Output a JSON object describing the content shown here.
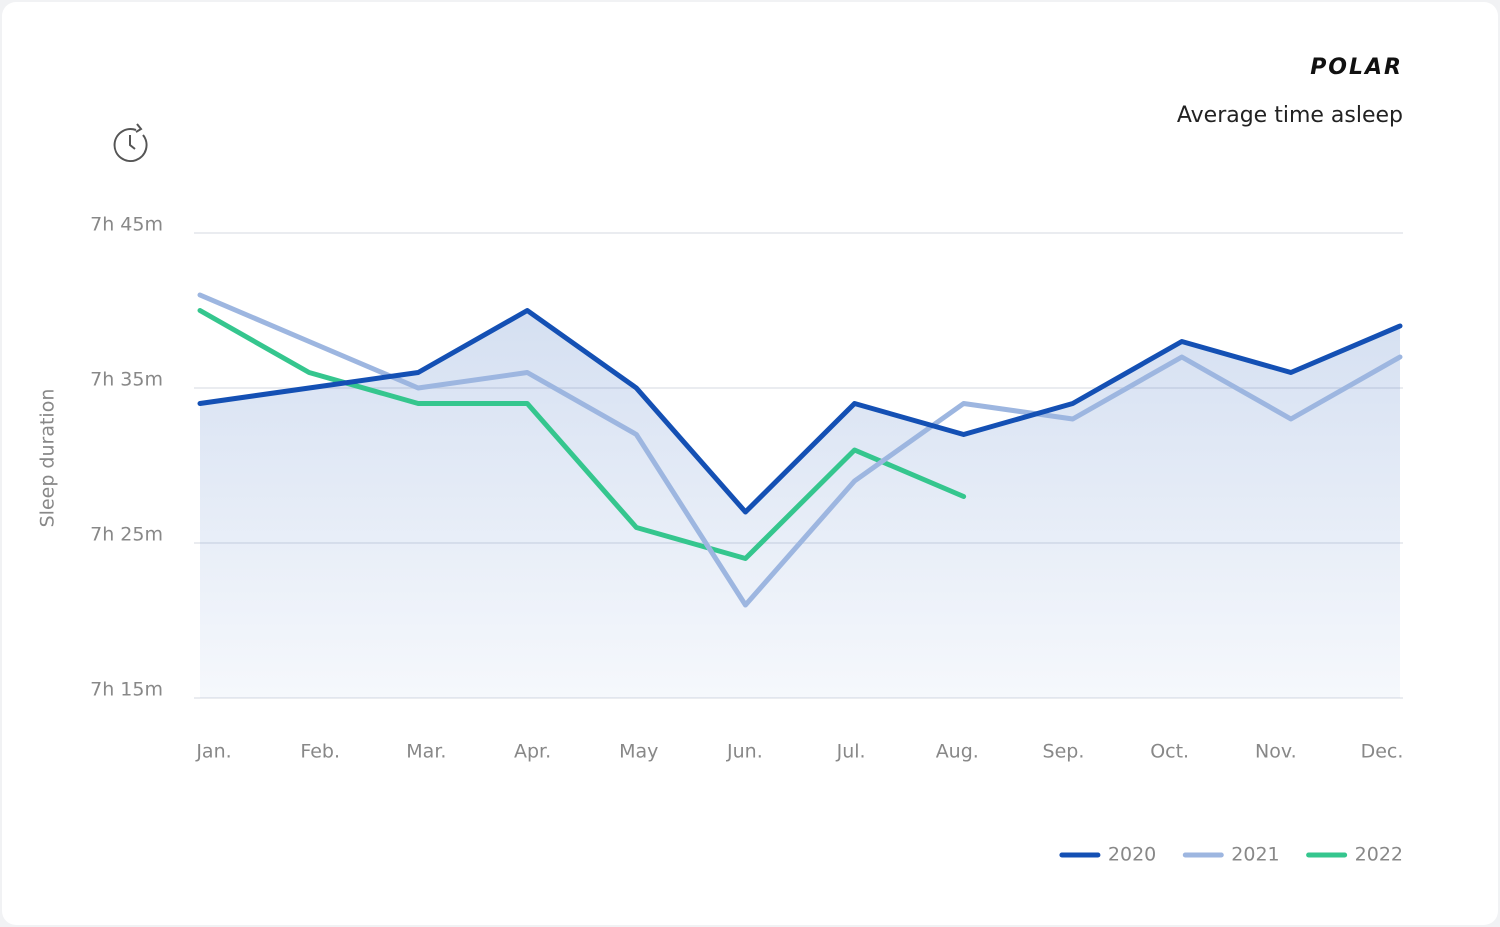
{
  "brand": "POLAR",
  "chart_data": {
    "type": "line",
    "title": "Average time asleep",
    "y_label": "Sleep duration",
    "categories": [
      "Jan.",
      "Feb.",
      "Mar.",
      "Apr.",
      "May",
      "Jun.",
      "Jul.",
      "Aug.",
      "Sep.",
      "Oct.",
      "Nov.",
      "Dec."
    ],
    "series": [
      {
        "name": "2020",
        "color": "#1450b4",
        "area": true,
        "values": [
          454,
          455,
          456,
          460,
          455,
          447,
          454,
          452,
          454,
          458,
          456,
          459
        ]
      },
      {
        "name": "2021",
        "color": "#9db6e0",
        "values": [
          461,
          458,
          455,
          456,
          452,
          441,
          449,
          454,
          453,
          457,
          453,
          457
        ]
      },
      {
        "name": "2022",
        "color": "#35c68e",
        "values": [
          460,
          456,
          454,
          454,
          446,
          444,
          451,
          448,
          null,
          null,
          null,
          null
        ]
      }
    ],
    "ylim": [
      435,
      465
    ],
    "yticks": [
      {
        "value": 435,
        "label": "7h 15m"
      },
      {
        "value": 445,
        "label": "7h 25m"
      },
      {
        "value": 455,
        "label": "7h 35m"
      },
      {
        "value": 465,
        "label": "7h 45m"
      }
    ],
    "grid": true,
    "legend": "bottom-right"
  }
}
